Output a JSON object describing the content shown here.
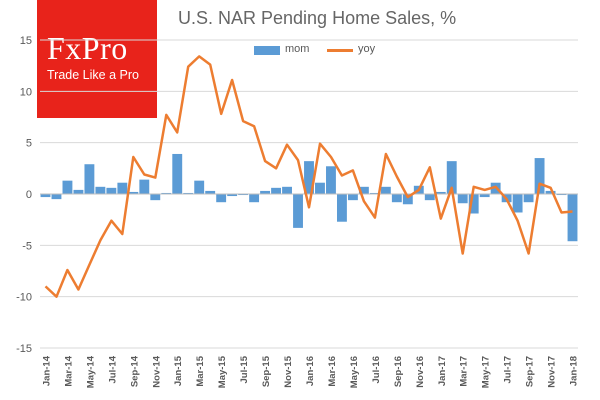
{
  "brand": {
    "logo_word": "FxPro",
    "tagline": "Trade Like a Pro",
    "logo_color": "#e8231b"
  },
  "chart_data": {
    "type": "bar",
    "title": "U.S. NAR Pending Home Sales, %",
    "ylim": [
      -15,
      15
    ],
    "yticks": [
      15,
      10,
      5,
      0,
      -5,
      -10,
      -15
    ],
    "grid": true,
    "legend_position": "top",
    "x": [
      "Jan-14",
      "Feb-14",
      "Mar-14",
      "Apr-14",
      "May-14",
      "Jun-14",
      "Jul-14",
      "Aug-14",
      "Sep-14",
      "Oct-14",
      "Nov-14",
      "Dec-14",
      "Jan-15",
      "Feb-15",
      "Mar-15",
      "Apr-15",
      "May-15",
      "Jun-15",
      "Jul-15",
      "Aug-15",
      "Sep-15",
      "Oct-15",
      "Nov-15",
      "Dec-15",
      "Jan-16",
      "Feb-16",
      "Mar-16",
      "Apr-16",
      "May-16",
      "Jun-16",
      "Jul-16",
      "Aug-16",
      "Sep-16",
      "Oct-16",
      "Nov-16",
      "Dec-16",
      "Jan-17",
      "Feb-17",
      "Mar-17",
      "Apr-17",
      "May-17",
      "Jun-17",
      "Jul-17",
      "Aug-17",
      "Sep-17",
      "Oct-17",
      "Nov-17",
      "Dec-17",
      "Jan-18"
    ],
    "tick_labels": [
      "Jan-14",
      "Mar-14",
      "May-14",
      "Jul-14",
      "Sep-14",
      "Nov-14",
      "Jan-15",
      "Mar-15",
      "May-15",
      "Jul-15",
      "Sep-15",
      "Nov-15",
      "Jan-16",
      "Mar-16",
      "May-16",
      "Jul-16",
      "Sep-16",
      "Nov-16",
      "Jan-17",
      "Mar-17",
      "May-17",
      "Jul-17",
      "Sep-17",
      "Nov-17",
      "Jan-18"
    ],
    "series": [
      {
        "name": "mom",
        "type": "bar",
        "color": "#5b9bd5",
        "values": [
          -0.3,
          -0.5,
          1.3,
          0.4,
          2.9,
          0.7,
          0.6,
          1.1,
          0.2,
          1.4,
          -0.6,
          0.1,
          3.9,
          0.1,
          1.3,
          0.3,
          -0.8,
          -0.2,
          -0.1,
          -0.8,
          0.3,
          0.6,
          0.7,
          -3.3,
          3.2,
          1.1,
          2.7,
          -2.7,
          -0.6,
          0.7,
          0.1,
          0.7,
          -0.8,
          -1.0,
          0.8,
          -0.6,
          0.2,
          3.2,
          -0.9,
          -1.9,
          -0.3,
          1.1,
          -0.8,
          -1.8,
          -0.8,
          3.5,
          0.3,
          -0.1,
          -4.6
        ]
      },
      {
        "name": "yoy",
        "type": "line",
        "color": "#ed7d31",
        "values": [
          -9.0,
          -10.0,
          -7.4,
          -9.3,
          -6.9,
          -4.5,
          -2.6,
          -3.9,
          3.6,
          1.9,
          1.6,
          7.7,
          6.0,
          12.4,
          13.4,
          12.6,
          7.8,
          11.1,
          7.1,
          6.6,
          3.2,
          2.5,
          4.8,
          3.3,
          -1.3,
          4.9,
          3.6,
          1.8,
          2.3,
          -0.7,
          -2.3,
          3.9,
          1.7,
          -0.3,
          0.4,
          2.6,
          -2.4,
          0.6,
          -5.8,
          0.7,
          0.4,
          0.7,
          -0.5,
          -2.6,
          -5.8,
          1.0,
          0.6,
          -1.8,
          -1.7
        ]
      }
    ]
  }
}
